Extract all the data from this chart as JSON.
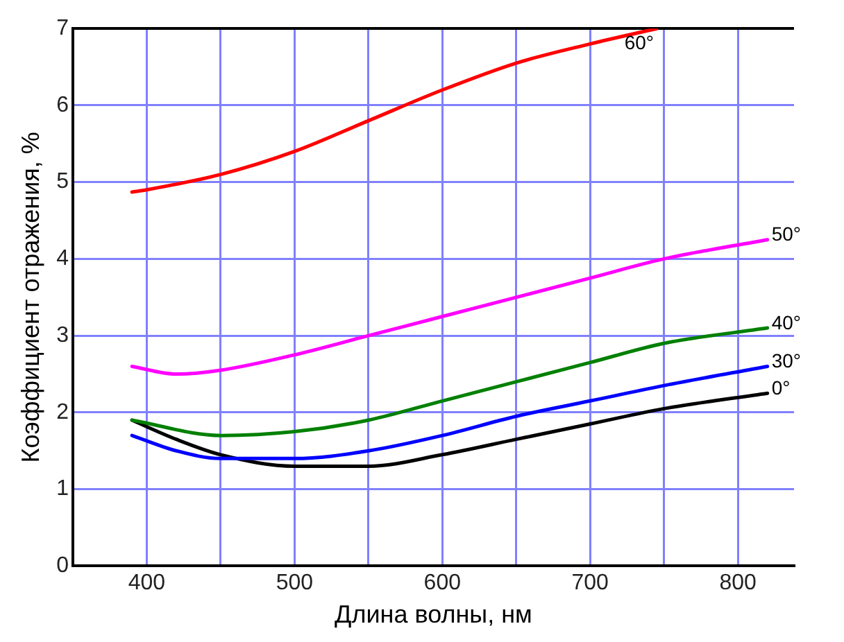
{
  "chart_data": {
    "type": "line",
    "xlabel": "Длина волны, нм",
    "ylabel": "Коэффициент отражения, %",
    "xlim": [
      350,
      838
    ],
    "ylim": [
      0,
      7
    ],
    "xticks": [
      400,
      {
        "value": 450,
        "label": null
      },
      500,
      {
        "value": 550,
        "label": null
      },
      600,
      {
        "value": 650,
        "label": null
      },
      700,
      {
        "value": 750,
        "label": null
      },
      800
    ],
    "yticks": [
      0,
      1,
      2,
      3,
      4,
      5,
      6,
      7
    ],
    "grid": true,
    "legend": false,
    "marker": "none",
    "line_style": "solid",
    "series": [
      {
        "name": "60°",
        "color": "#ff0000",
        "x": [
          390,
          400,
          450,
          500,
          550,
          600,
          650,
          700,
          745
        ],
        "values": [
          4.87,
          4.9,
          5.1,
          5.4,
          5.8,
          6.2,
          6.55,
          6.8,
          7.0
        ]
      },
      {
        "name": "50°",
        "color": "#ff00ff",
        "x": [
          390,
          420,
          450,
          500,
          550,
          600,
          650,
          700,
          750,
          820
        ],
        "values": [
          2.6,
          2.5,
          2.55,
          2.75,
          3.0,
          3.25,
          3.5,
          3.75,
          4.0,
          4.25
        ]
      },
      {
        "name": "40°",
        "color": "#008000",
        "x": [
          390,
          450,
          500,
          550,
          600,
          650,
          700,
          750,
          820
        ],
        "values": [
          1.9,
          1.7,
          1.75,
          1.9,
          2.15,
          2.4,
          2.65,
          2.9,
          3.1
        ]
      },
      {
        "name": "30°",
        "color": "#0000ff",
        "x": [
          390,
          420,
          450,
          500,
          550,
          600,
          650,
          700,
          750,
          820
        ],
        "values": [
          1.7,
          1.5,
          1.4,
          1.4,
          1.5,
          1.7,
          1.95,
          2.15,
          2.35,
          2.6
        ]
      },
      {
        "name": "0°",
        "color": "#000000",
        "x": [
          390,
          420,
          450,
          500,
          550,
          600,
          650,
          700,
          750,
          820
        ],
        "values": [
          1.9,
          1.65,
          1.45,
          1.3,
          1.3,
          1.45,
          1.65,
          1.85,
          2.05,
          2.25
        ]
      }
    ]
  }
}
